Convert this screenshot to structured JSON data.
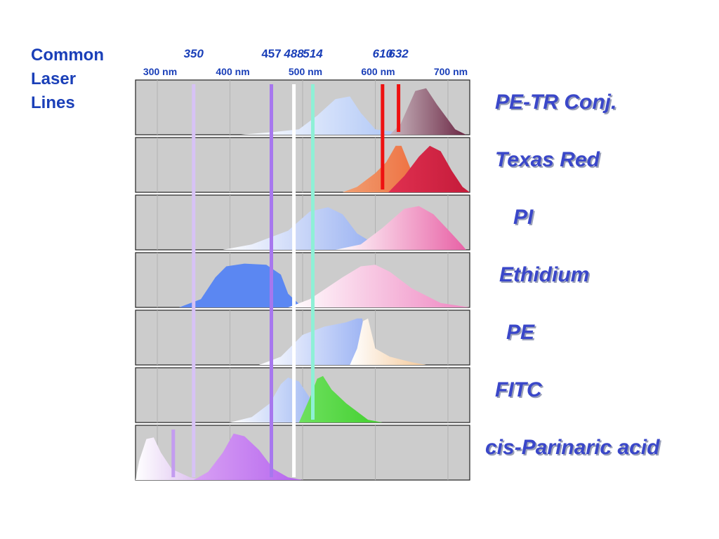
{
  "sidebar": {
    "lines": [
      "Common",
      "Laser",
      "Lines"
    ]
  },
  "chart_data": {
    "type": "area",
    "x_unit": "nm",
    "xlim": [
      270,
      730
    ],
    "x_ticks": [
      {
        "value": 300,
        "label": "300 nm"
      },
      {
        "value": 400,
        "label": "400 nm"
      },
      {
        "value": 500,
        "label": "500 nm"
      },
      {
        "value": 600,
        "label": "600 nm"
      },
      {
        "value": 700,
        "label": "700 nm"
      }
    ],
    "laser_lines": [
      {
        "wavelength": 350,
        "label": "350",
        "italic": true,
        "color": "#d7c2f5",
        "panels": [
          1,
          7
        ]
      },
      {
        "wavelength": 457,
        "label": "457",
        "italic": false,
        "color": "#a777ee",
        "panels": [
          1,
          7
        ]
      },
      {
        "wavelength": 488,
        "label": "488",
        "italic": true,
        "color": "#ffffff",
        "panels": [
          1,
          7
        ]
      },
      {
        "wavelength": 514,
        "label": "514",
        "italic": true,
        "color": "#8ef0d6",
        "panels": [
          1,
          6
        ]
      },
      {
        "wavelength": 610,
        "label": "610",
        "italic": true,
        "color": "#ee1111",
        "panels": [
          1,
          2
        ]
      },
      {
        "wavelength": 632,
        "label": "632",
        "italic": true,
        "color": "#ee1111",
        "panels": [
          1,
          1
        ]
      }
    ],
    "panel_lines": [
      {
        "panel": 7,
        "wavelength": 322,
        "color": "#c39cf0"
      }
    ],
    "panels": [
      {
        "name": "PE-TR Conj.",
        "label_offset": 0,
        "curves": [
          {
            "grad": [
              "#ffffff",
              "#9cb9f4"
            ],
            "points": [
              [
                415,
                0
              ],
              [
                460,
                0.05
              ],
              [
                495,
                0.1
              ],
              [
                520,
                0.35
              ],
              [
                545,
                0.65
              ],
              [
                565,
                0.7
              ],
              [
                580,
                0.4
              ],
              [
                600,
                0.1
              ],
              [
                640,
                0.03
              ],
              [
                680,
                0
              ]
            ]
          },
          {
            "grad": [
              "#c9b7bf",
              "#6b2744"
            ],
            "points": [
              [
                620,
                0
              ],
              [
                635,
                0.2
              ],
              [
                655,
                0.8
              ],
              [
                670,
                0.85
              ],
              [
                685,
                0.55
              ],
              [
                710,
                0.1
              ],
              [
                725,
                0
              ]
            ]
          }
        ]
      },
      {
        "name": "Texas Red",
        "label_offset": 0,
        "curves": [
          {
            "grad": [
              "#f0a073",
              "#ee6535"
            ],
            "points": [
              [
                555,
                0
              ],
              [
                575,
                0.1
              ],
              [
                600,
                0.35
              ],
              [
                615,
                0.55
              ],
              [
                628,
                0.85
              ],
              [
                636,
                0.85
              ],
              [
                648,
                0.45
              ],
              [
                662,
                0.1
              ],
              [
                680,
                0
              ]
            ]
          },
          {
            "grad": [
              "#e03050",
              "#c41b3a"
            ],
            "points": [
              [
                618,
                0
              ],
              [
                640,
                0.3
              ],
              [
                660,
                0.65
              ],
              [
                675,
                0.85
              ],
              [
                690,
                0.75
              ],
              [
                705,
                0.4
              ],
              [
                720,
                0.1
              ],
              [
                730,
                0
              ]
            ]
          }
        ]
      },
      {
        "name": "PI",
        "label_offset": 26,
        "curves": [
          {
            "grad": [
              "#ffffff",
              "#8ea9f0"
            ],
            "points": [
              [
                390,
                0
              ],
              [
                430,
                0.1
              ],
              [
                480,
                0.35
              ],
              [
                510,
                0.7
              ],
              [
                535,
                0.78
              ],
              [
                555,
                0.65
              ],
              [
                575,
                0.3
              ],
              [
                600,
                0.1
              ],
              [
                620,
                0
              ]
            ]
          },
          {
            "grad": [
              "#ffffff",
              "#e862a6"
            ],
            "points": [
              [
                545,
                0
              ],
              [
                580,
                0.1
              ],
              [
                610,
                0.4
              ],
              [
                640,
                0.75
              ],
              [
                660,
                0.8
              ],
              [
                680,
                0.65
              ],
              [
                705,
                0.3
              ],
              [
                720,
                0.08
              ],
              [
                725,
                0
              ]
            ]
          }
        ]
      },
      {
        "name": "Ethidium",
        "label_offset": 6,
        "curves": [
          {
            "grad": [
              "#5b87f2",
              "#5b87f2"
            ],
            "points": [
              [
                330,
                0
              ],
              [
                360,
                0.15
              ],
              [
                380,
                0.55
              ],
              [
                395,
                0.75
              ],
              [
                420,
                0.8
              ],
              [
                450,
                0.78
              ],
              [
                470,
                0.6
              ],
              [
                480,
                0.25
              ],
              [
                500,
                0
              ]
            ]
          },
          {
            "grad": [
              "#ffffff",
              "#ef86c1"
            ],
            "points": [
              [
                480,
                0
              ],
              [
                510,
                0.15
              ],
              [
                555,
                0.55
              ],
              [
                580,
                0.75
              ],
              [
                600,
                0.78
              ],
              [
                620,
                0.65
              ],
              [
                650,
                0.35
              ],
              [
                690,
                0.08
              ],
              [
                730,
                0
              ]
            ]
          }
        ]
      },
      {
        "name": "PE",
        "label_offset": 16,
        "curves": [
          {
            "grad": [
              "#ffffff",
              "#7f9df0"
            ],
            "points": [
              [
                440,
                0
              ],
              [
                470,
                0.15
              ],
              [
                500,
                0.55
              ],
              [
                530,
                0.7
              ],
              [
                560,
                0.78
              ],
              [
                575,
                0.85
              ],
              [
                582,
                0.85
              ],
              [
                590,
                0.25
              ],
              [
                610,
                0.05
              ],
              [
                630,
                0
              ]
            ]
          },
          {
            "grad": [
              "#ffffff",
              "#f4c898"
            ],
            "points": [
              [
                565,
                0
              ],
              [
                575,
                0.3
              ],
              [
                583,
                0.8
              ],
              [
                590,
                0.85
              ],
              [
                600,
                0.3
              ],
              [
                620,
                0.15
              ],
              [
                650,
                0.05
              ],
              [
                670,
                0
              ]
            ]
          }
        ]
      },
      {
        "name": "FITC",
        "label_offset": 0,
        "curves": [
          {
            "grad": [
              "#ffffff",
              "#8aa8f0"
            ],
            "points": [
              [
                400,
                0
              ],
              [
                430,
                0.1
              ],
              [
                455,
                0.35
              ],
              [
                470,
                0.7
              ],
              [
                480,
                0.82
              ],
              [
                495,
                0.75
              ],
              [
                510,
                0.45
              ],
              [
                525,
                0.1
              ],
              [
                545,
                0
              ]
            ]
          },
          {
            "grad": [
              "#6ee05f",
              "#42cf2e"
            ],
            "points": [
              [
                495,
                0
              ],
              [
                510,
                0.45
              ],
              [
                520,
                0.8
              ],
              [
                528,
                0.85
              ],
              [
                540,
                0.6
              ],
              [
                560,
                0.35
              ],
              [
                590,
                0.05
              ],
              [
                610,
                0
              ]
            ]
          }
        ]
      },
      {
        "name": "cis-Parinaric acid",
        "label_offset": -14,
        "curves": [
          {
            "grad": [
              "#ffffff",
              "#d9b9ee"
            ],
            "points": [
              [
                270,
                0
              ],
              [
                275,
                0.35
              ],
              [
                285,
                0.75
              ],
              [
                295,
                0.78
              ],
              [
                305,
                0.5
              ],
              [
                320,
                0.2
              ],
              [
                345,
                0.05
              ],
              [
                365,
                0
              ]
            ]
          },
          {
            "grad": [
              "#d8a0f4",
              "#b565ee"
            ],
            "points": [
              [
                350,
                0
              ],
              [
                370,
                0.15
              ],
              [
                390,
                0.5
              ],
              [
                405,
                0.85
              ],
              [
                420,
                0.8
              ],
              [
                440,
                0.55
              ],
              [
                460,
                0.2
              ],
              [
                480,
                0.05
              ],
              [
                500,
                0
              ]
            ]
          }
        ]
      }
    ]
  }
}
